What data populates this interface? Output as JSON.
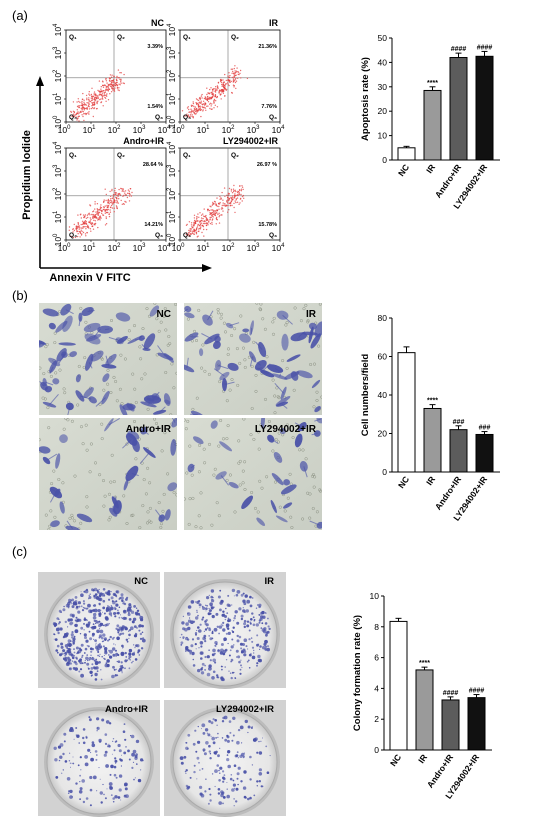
{
  "panels": {
    "a": "(a)",
    "b": "(b)",
    "c": "(c)"
  },
  "flow": {
    "y_label": "Propidium Iodide",
    "x_label": "Annexin V FITC",
    "axis_ticks": [
      "0",
      "1",
      "2",
      "3",
      "4"
    ],
    "plots": [
      {
        "label": "NC",
        "q1": "Q₁",
        "q2": "Q₂",
        "q3": "Q₃",
        "q4": "Q₄",
        "q2_pct": "3.39%",
        "q3_pct": "1.54%"
      },
      {
        "label": "IR",
        "q1": "Q₁",
        "q2": "Q₂",
        "q3": "Q₃",
        "q4": "Q₄",
        "q2_pct": "21.36%",
        "q3_pct": "7.76%"
      },
      {
        "label": "Andro+IR",
        "q1": "Q₁",
        "q2": "Q₂",
        "q3": "Q₃",
        "q4": "Q₄",
        "q2_pct": "28.64 %",
        "q3_pct": "14.21%"
      },
      {
        "label": "LY294002+IR",
        "q1": "Q₁",
        "q2": "Q₂",
        "q3": "Q₃",
        "q4": "Q₄",
        "q2_pct": "26.97 %",
        "q3_pct": "15.78%"
      }
    ]
  },
  "micro_labels": [
    "NC",
    "IR",
    "Andro+IR",
    "LY294002+IR"
  ],
  "colony_labels": [
    "NC",
    "IR",
    "Andro+IR",
    "LY294002+IR"
  ],
  "colors": {
    "flow_dots": "#e23b3b",
    "stain": "#4a52a8",
    "bar_nc": "#ffffff",
    "bar_ir": "#9a9a9a",
    "bar_andro": "#5c5c5c",
    "bar_ly": "#111111"
  },
  "chart_data": [
    {
      "type": "bar",
      "panel": "a",
      "categories": [
        "NC",
        "IR",
        "Andro+IR",
        "LY294002+IR"
      ],
      "values": [
        5,
        28.5,
        42,
        42.5
      ],
      "errors": [
        0.6,
        1.5,
        1.8,
        2
      ],
      "annotations": [
        "",
        "****",
        "####",
        "####"
      ],
      "ylabel": "Apoptosis rate (%)",
      "ylim": [
        0,
        50
      ],
      "yticks": [
        0,
        10,
        20,
        30,
        40,
        50
      ],
      "ytick_labels": [
        "0",
        "10",
        "20",
        "30",
        "40",
        "50"
      ]
    },
    {
      "type": "bar",
      "panel": "b",
      "categories": [
        "NC",
        "IR",
        "Andro+IR",
        "LY294002+IR"
      ],
      "values": [
        62,
        33,
        22,
        19.5
      ],
      "errors": [
        3,
        2,
        2,
        1.5
      ],
      "annotations": [
        "",
        "****",
        "###",
        "###"
      ],
      "ylabel": "Cell numbers/field",
      "ylim": [
        0,
        80
      ],
      "yticks": [
        0,
        20,
        40,
        60,
        80
      ],
      "ytick_labels": [
        "0",
        "20",
        "40",
        "60",
        "80"
      ]
    },
    {
      "type": "bar",
      "panel": "c",
      "categories": [
        "NC",
        "IR",
        "Andro+IR",
        "LY294002+IR"
      ],
      "values": [
        8.35,
        5.2,
        3.25,
        3.4
      ],
      "errors": [
        0.2,
        0.18,
        0.2,
        0.2
      ],
      "annotations": [
        "",
        "****",
        "####",
        "####"
      ],
      "ylabel": "Colony formation rate (%)",
      "ylim": [
        0,
        10
      ],
      "yticks": [
        0,
        2,
        4,
        6,
        8,
        10
      ],
      "ytick_labels": [
        "0",
        "2",
        "4",
        "6",
        "8",
        "10"
      ]
    }
  ]
}
